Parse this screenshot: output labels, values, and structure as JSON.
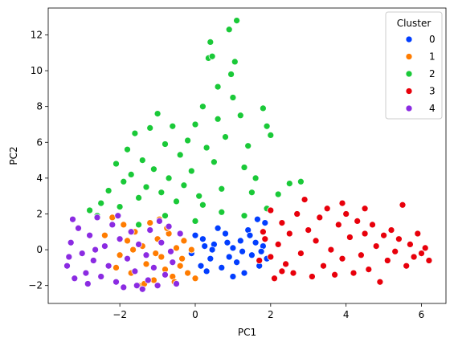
{
  "chart_data": {
    "type": "scatter",
    "title": "",
    "xlabel": "PC1",
    "ylabel": "PC2",
    "xlim": [
      -3.9,
      6.65
    ],
    "ylim": [
      -3.0,
      13.5
    ],
    "xticks": [
      -2,
      0,
      2,
      4,
      6
    ],
    "yticks": [
      -2,
      0,
      2,
      4,
      6,
      8,
      10,
      12
    ],
    "xtick_labels": [
      "−2",
      "0",
      "2",
      "4",
      "6"
    ],
    "ytick_labels": [
      "−2",
      "0",
      "2",
      "4",
      "6",
      "8",
      "10",
      "12"
    ],
    "grid": false,
    "legend": {
      "title": "Cluster",
      "placement": "top-right",
      "entries": [
        "0",
        "1",
        "2",
        "3",
        "4"
      ]
    },
    "point_edge_color": "#ffffff",
    "series": [
      {
        "name": "0",
        "color": "#023eff",
        "points": [
          [
            -0.1,
            -0.2
          ],
          [
            0.2,
            0.6
          ],
          [
            0.4,
            -0.5
          ],
          [
            0.5,
            0.3
          ],
          [
            0.7,
            -1.0
          ],
          [
            0.8,
            0.9
          ],
          [
            1.0,
            0.1
          ],
          [
            1.1,
            -0.7
          ],
          [
            1.2,
            0.5
          ],
          [
            1.3,
            -1.3
          ],
          [
            1.4,
            1.1
          ],
          [
            1.5,
            -0.3
          ],
          [
            1.6,
            0.4
          ],
          [
            1.7,
            -0.9
          ],
          [
            1.8,
            0.2
          ],
          [
            1.9,
            -0.5
          ],
          [
            1.85,
            1.5
          ],
          [
            0.0,
            0.8
          ],
          [
            0.3,
            -1.2
          ],
          [
            0.6,
            1.2
          ],
          [
            0.9,
            -0.4
          ],
          [
            1.25,
            -0.1
          ],
          [
            1.45,
            0.8
          ],
          [
            1.65,
            1.7
          ],
          [
            0.15,
            -0.9
          ],
          [
            1.0,
            -1.5
          ],
          [
            0.45,
            0.0
          ],
          [
            1.75,
            -0.1
          ],
          [
            0.85,
            0.4
          ],
          [
            0.25,
            0.2
          ]
        ]
      },
      {
        "name": "1",
        "color": "#ff7c00",
        "points": [
          [
            -2.2,
            1.8
          ],
          [
            -2.0,
            -0.3
          ],
          [
            -1.8,
            0.5
          ],
          [
            -1.7,
            -1.3
          ],
          [
            -1.6,
            1.0
          ],
          [
            -1.5,
            -2.0
          ],
          [
            -1.4,
            0.2
          ],
          [
            -1.3,
            -0.8
          ],
          [
            -1.2,
            1.5
          ],
          [
            -1.1,
            -1.7
          ],
          [
            -1.0,
            0.6
          ],
          [
            -0.9,
            -0.4
          ],
          [
            -0.8,
            -1.1
          ],
          [
            -0.7,
            0.9
          ],
          [
            -0.6,
            -1.5
          ],
          [
            -0.5,
            0.1
          ],
          [
            -0.4,
            -0.9
          ],
          [
            -0.3,
            0.5
          ],
          [
            -0.2,
            -1.3
          ],
          [
            -0.1,
            0.0
          ],
          [
            -2.4,
            0.8
          ],
          [
            -1.9,
            1.4
          ],
          [
            -1.35,
            -1.9
          ],
          [
            -0.75,
            1.2
          ],
          [
            -0.55,
            -1.8
          ],
          [
            -1.05,
            -0.2
          ],
          [
            -1.65,
            0.0
          ],
          [
            -0.95,
            1.7
          ],
          [
            -0.35,
            -0.5
          ],
          [
            -2.1,
            -1.0
          ],
          [
            0.0,
            -1.6
          ]
        ]
      },
      {
        "name": "2",
        "color": "#1ac938",
        "points": [
          [
            -2.8,
            2.2
          ],
          [
            -2.5,
            2.6
          ],
          [
            -2.3,
            3.3
          ],
          [
            -2.1,
            4.8
          ],
          [
            -2.0,
            2.4
          ],
          [
            -1.9,
            3.8
          ],
          [
            -1.8,
            5.6
          ],
          [
            -1.7,
            4.2
          ],
          [
            -1.6,
            6.5
          ],
          [
            -1.5,
            2.9
          ],
          [
            -1.4,
            5.0
          ],
          [
            -1.3,
            3.5
          ],
          [
            -1.2,
            6.8
          ],
          [
            -1.1,
            4.5
          ],
          [
            -1.0,
            7.6
          ],
          [
            -0.9,
            3.2
          ],
          [
            -0.8,
            5.9
          ],
          [
            -0.7,
            4.0
          ],
          [
            -0.6,
            6.9
          ],
          [
            -0.5,
            2.7
          ],
          [
            -0.4,
            5.3
          ],
          [
            -0.3,
            3.6
          ],
          [
            -0.2,
            6.1
          ],
          [
            -0.1,
            4.4
          ],
          [
            0.0,
            7.0
          ],
          [
            0.1,
            3.0
          ],
          [
            0.2,
            8.0
          ],
          [
            0.3,
            5.7
          ],
          [
            0.35,
            10.7
          ],
          [
            0.4,
            11.6
          ],
          [
            0.45,
            10.8
          ],
          [
            0.5,
            4.9
          ],
          [
            0.6,
            7.3
          ],
          [
            0.7,
            3.4
          ],
          [
            0.8,
            6.3
          ],
          [
            0.9,
            12.3
          ],
          [
            0.95,
            9.8
          ],
          [
            1.0,
            8.5
          ],
          [
            1.05,
            10.5
          ],
          [
            1.1,
            12.8
          ],
          [
            1.2,
            7.5
          ],
          [
            1.3,
            4.6
          ],
          [
            1.4,
            5.8
          ],
          [
            1.5,
            3.2
          ],
          [
            1.6,
            4.0
          ],
          [
            1.8,
            7.9
          ],
          [
            1.9,
            6.9
          ],
          [
            2.0,
            6.4
          ],
          [
            2.2,
            3.1
          ],
          [
            2.5,
            3.7
          ],
          [
            2.8,
            3.8
          ],
          [
            -1.5,
            1.4
          ],
          [
            -0.8,
            1.9
          ],
          [
            0.0,
            1.6
          ],
          [
            0.7,
            2.1
          ],
          [
            1.3,
            1.9
          ],
          [
            1.9,
            2.3
          ],
          [
            0.2,
            2.5
          ],
          [
            -2.6,
            1.9
          ],
          [
            0.6,
            9.1
          ]
        ]
      },
      {
        "name": "3",
        "color": "#e8000b",
        "points": [
          [
            1.7,
            -0.6
          ],
          [
            1.8,
            1.0
          ],
          [
            2.0,
            2.2
          ],
          [
            2.1,
            -1.6
          ],
          [
            2.2,
            0.3
          ],
          [
            2.3,
            1.5
          ],
          [
            2.4,
            -0.8
          ],
          [
            2.5,
            0.9
          ],
          [
            2.6,
            -1.3
          ],
          [
            2.7,
            2.0
          ],
          [
            2.8,
            -0.2
          ],
          [
            2.9,
            2.8
          ],
          [
            3.0,
            1.1
          ],
          [
            3.1,
            -1.5
          ],
          [
            3.2,
            0.5
          ],
          [
            3.3,
            1.8
          ],
          [
            3.4,
            -0.9
          ],
          [
            3.5,
            2.3
          ],
          [
            3.6,
            0.0
          ],
          [
            3.7,
            -1.4
          ],
          [
            3.8,
            1.4
          ],
          [
            3.9,
            -0.5
          ],
          [
            4.0,
            2.0
          ],
          [
            4.1,
            0.7
          ],
          [
            4.2,
            -1.3
          ],
          [
            4.3,
            1.6
          ],
          [
            4.4,
            -0.3
          ],
          [
            4.5,
            0.9
          ],
          [
            4.6,
            -1.1
          ],
          [
            4.7,
            1.4
          ],
          [
            4.8,
            0.2
          ],
          [
            4.9,
            -1.8
          ],
          [
            5.0,
            0.8
          ],
          [
            5.1,
            -0.6
          ],
          [
            5.2,
            1.1
          ],
          [
            5.3,
            -0.1
          ],
          [
            5.4,
            0.6
          ],
          [
            5.5,
            2.5
          ],
          [
            5.6,
            -0.9
          ],
          [
            5.7,
            0.3
          ],
          [
            5.8,
            -0.4
          ],
          [
            5.9,
            0.9
          ],
          [
            6.0,
            -0.2
          ],
          [
            6.1,
            0.1
          ],
          [
            6.2,
            -0.6
          ],
          [
            4.5,
            2.3
          ],
          [
            3.9,
            2.6
          ],
          [
            2.0,
            -0.4
          ],
          [
            1.85,
            0.6
          ],
          [
            2.3,
            -1.2
          ]
        ]
      },
      {
        "name": "4",
        "color": "#8b2be2",
        "points": [
          [
            -3.4,
            -0.9
          ],
          [
            -3.3,
            0.4
          ],
          [
            -3.2,
            -1.6
          ],
          [
            -3.1,
            1.2
          ],
          [
            -3.0,
            -0.2
          ],
          [
            -2.9,
            -1.3
          ],
          [
            -2.8,
            0.8
          ],
          [
            -2.7,
            -0.6
          ],
          [
            -2.6,
            1.8
          ],
          [
            -2.5,
            -1.5
          ],
          [
            -2.4,
            0.2
          ],
          [
            -2.3,
            -0.9
          ],
          [
            -2.2,
            1.4
          ],
          [
            -2.1,
            -1.8
          ],
          [
            -2.0,
            0.6
          ],
          [
            -1.9,
            -2.1
          ],
          [
            -1.8,
            -0.5
          ],
          [
            -1.7,
            1.0
          ],
          [
            -1.6,
            -1.2
          ],
          [
            -1.5,
            0.3
          ],
          [
            -1.4,
            -2.2
          ],
          [
            -1.3,
            -0.3
          ],
          [
            -1.2,
            1.1
          ],
          [
            -1.1,
            -1.0
          ],
          [
            -1.0,
            -2.0
          ],
          [
            -0.9,
            0.4
          ],
          [
            -0.8,
            -1.4
          ],
          [
            -0.7,
            1.3
          ],
          [
            -0.6,
            -0.7
          ],
          [
            -0.5,
            -1.9
          ],
          [
            -0.4,
            0.9
          ],
          [
            -3.25,
            1.7
          ],
          [
            -2.85,
            -1.9
          ],
          [
            -2.05,
            1.9
          ],
          [
            -1.55,
            -2.0
          ],
          [
            -0.95,
            1.6
          ],
          [
            -3.35,
            -0.4
          ],
          [
            -2.65,
            0.0
          ],
          [
            -1.25,
            -1.7
          ],
          [
            -0.65,
            -0.1
          ]
        ]
      }
    ]
  }
}
